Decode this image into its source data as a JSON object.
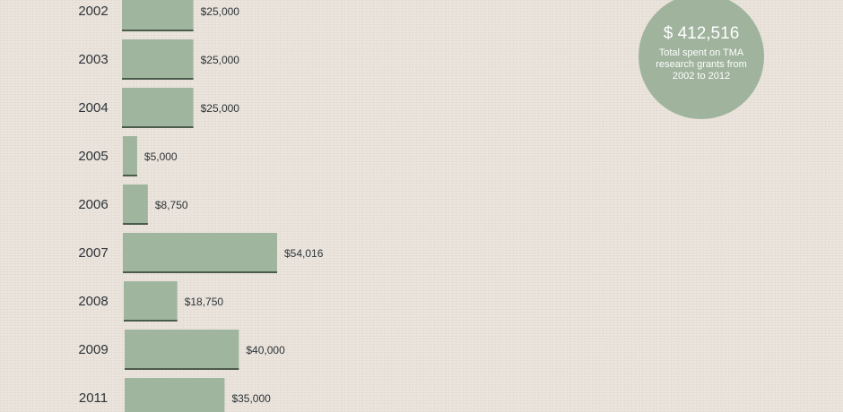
{
  "summary": {
    "total": "$ 412,516",
    "caption": "Total spent on TMA research grants from 2002 to 2012"
  },
  "colors": {
    "bar": "#a0b59e",
    "bar_shadow": "#4b5b4b",
    "badge": "#9fb39d",
    "text": "#2e3337"
  },
  "chart_data": {
    "type": "bar",
    "orientation": "horizontal",
    "categories": [
      "2002",
      "2003",
      "2004",
      "2005",
      "2006",
      "2007",
      "2008",
      "2009",
      "2011"
    ],
    "values": [
      25000,
      25000,
      25000,
      5000,
      8750,
      54016,
      18750,
      40000,
      35000
    ],
    "value_labels": [
      "$25,000",
      "$25,000",
      "$25,000",
      "$5,000",
      "$8,750",
      "$54,016",
      "$18,750",
      "$40,000",
      "$35,000"
    ],
    "title": "",
    "xlabel": "",
    "ylabel": "",
    "grid": false
  }
}
